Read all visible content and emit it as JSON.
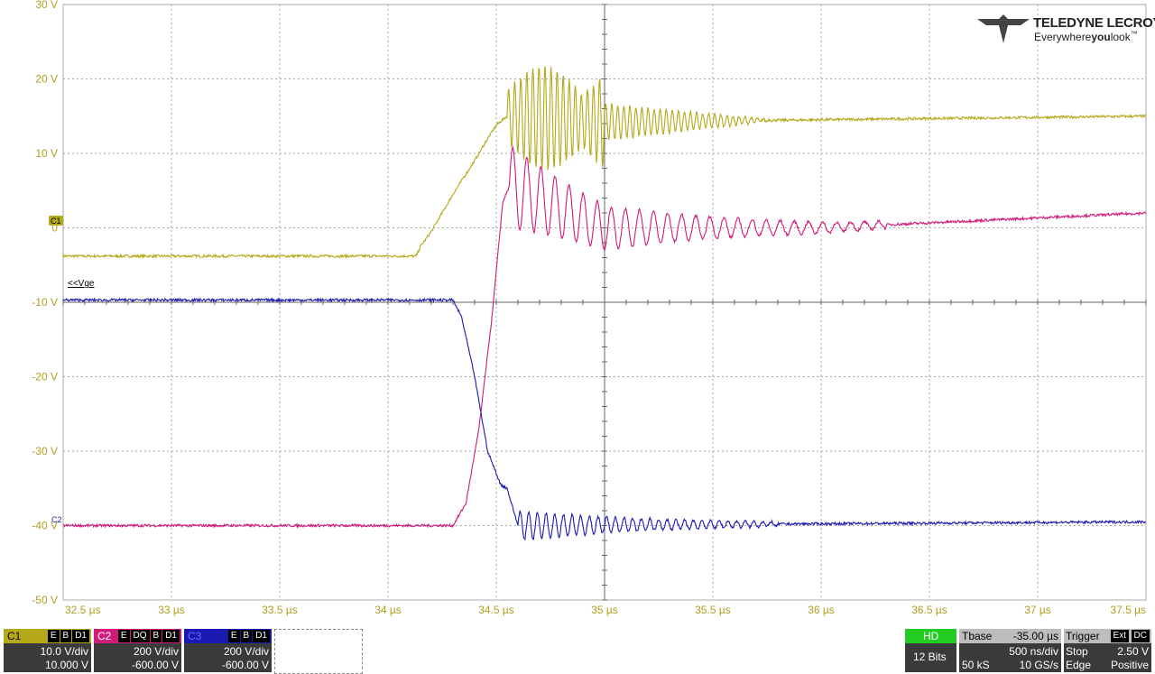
{
  "brand": {
    "name": "TELEDYNE LECROY",
    "tagline_pre": "Everywhere",
    "tagline_bold": "you",
    "tagline_post": "look",
    "tagline_tm": "™"
  },
  "colors": {
    "c1": "#b5a81a",
    "c2": "#d11a7a",
    "c3": "#1a1ab0",
    "grid": "#a8a8a8",
    "axis_text": "#b0a020"
  },
  "markers": {
    "c1": "C1",
    "c2": "C2",
    "vge": "<<Vge"
  },
  "chart_data": {
    "type": "line",
    "xlim": [
      32.5,
      37.5
    ],
    "ylim": [
      -50,
      30
    ],
    "x_ticks": [
      "32.5 µs",
      "33 µs",
      "33.5 µs",
      "34 µs",
      "34.5 µs",
      "35 µs",
      "35.5 µs",
      "36 µs",
      "36.5 µs",
      "37 µs",
      "37.5 µs"
    ],
    "y_ticks": [
      "30 V",
      "20 V",
      "10 V",
      "0",
      "-10 V",
      "-20 V",
      "-30 V",
      "-40 V",
      "-50 V"
    ],
    "x_unit": "µs",
    "grid": true,
    "series": [
      {
        "name": "C1",
        "color": "#b5a81a",
        "points": [
          [
            32.5,
            -3.8
          ],
          [
            34.13,
            -3.8
          ],
          [
            34.15,
            -2.5
          ],
          [
            34.2,
            -0.5
          ],
          [
            34.25,
            2.0
          ],
          [
            34.3,
            4.5
          ],
          [
            34.35,
            6.8
          ],
          [
            34.4,
            9.0
          ],
          [
            34.45,
            11.5
          ],
          [
            34.5,
            13.8
          ],
          [
            34.55,
            15.0
          ],
          [
            34.62,
            15.0
          ],
          [
            35.0,
            14.2
          ],
          [
            37.5,
            15.0
          ]
        ],
        "ringing": {
          "start": 34.55,
          "end": 35.0,
          "amplitude": 7.0,
          "period_us": 0.028,
          "tail_end": 35.8,
          "tail_amplitude": 2.5
        }
      },
      {
        "name": "C2",
        "color": "#d11a7a",
        "points": [
          [
            32.5,
            -40.0
          ],
          [
            34.3,
            -40.0
          ],
          [
            34.36,
            -37.0
          ],
          [
            34.42,
            -27.0
          ],
          [
            34.48,
            -12.0
          ],
          [
            34.53,
            3.5
          ],
          [
            34.56,
            5.5
          ],
          [
            35.0,
            0.0
          ],
          [
            36.0,
            0.0
          ],
          [
            37.5,
            2.0
          ]
        ],
        "ringing": {
          "start": 34.56,
          "end": 36.3,
          "amplitude": 5.5,
          "period_us": 0.065,
          "decay": 1.4
        }
      },
      {
        "name": "C3",
        "color": "#1a1ab0",
        "points": [
          [
            32.5,
            -9.7
          ],
          [
            34.3,
            -9.7
          ],
          [
            34.34,
            -12.0
          ],
          [
            34.4,
            -20.0
          ],
          [
            34.46,
            -30.0
          ],
          [
            34.52,
            -34.5
          ],
          [
            34.55,
            -35.0
          ],
          [
            34.6,
            -40.0
          ],
          [
            37.5,
            -39.5
          ]
        ],
        "ringing": {
          "start": 34.6,
          "end": 35.8,
          "amplitude": 2.0,
          "period_us": 0.04,
          "decay": 1.5
        }
      }
    ]
  },
  "channels": [
    {
      "name": "C1",
      "color": "#b5a81a",
      "flags": [
        "E",
        "B",
        "D1"
      ],
      "vdiv": "10.0 V/div",
      "offset": "10.000 V"
    },
    {
      "name": "C2",
      "color": "#d11a7a",
      "flags": [
        "E",
        "DQ",
        "B",
        "D1"
      ],
      "vdiv": "200 V/div",
      "offset": "-600.00 V"
    },
    {
      "name": "C3",
      "color": "#1a1ab0",
      "flags": [
        "E",
        "B",
        "D1"
      ],
      "vdiv": "200 V/div",
      "offset": "-600.00 V"
    }
  ],
  "hd": {
    "label": "HD",
    "bits": "12 Bits"
  },
  "timebase": {
    "label": "Tbase",
    "delay": "-35.00 µs",
    "tdiv": "500 ns/div",
    "samples": "50 kS",
    "rate": "10 GS/s"
  },
  "trigger": {
    "label": "Trigger",
    "source": "Ext",
    "coupling": "DC",
    "mode": "Stop",
    "level": "2.50 V",
    "type": "Edge",
    "slope": "Positive"
  }
}
